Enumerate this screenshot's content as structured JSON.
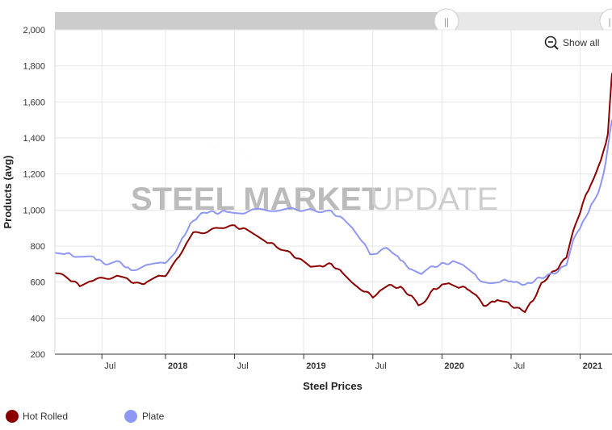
{
  "navigator": {
    "handle_left_glyph": "||",
    "handle_right_glyph": "|"
  },
  "zoom": {
    "label": "Show all",
    "icon": "zoom-out-icon"
  },
  "watermark": {
    "part_bold": "STEEL MARKET",
    "part_light": "UPDATE"
  },
  "chart_data": {
    "type": "line",
    "title": "",
    "xlabel": "Steel Prices",
    "ylabel": "Products (avg)",
    "ylim": [
      200,
      2000
    ],
    "yticks": [
      "200",
      "400",
      "600",
      "800",
      "1,000",
      "1,200",
      "1,400",
      "1,600",
      "1,800",
      "2,000"
    ],
    "xticks": [
      {
        "label": "Jul",
        "date": "2017.54",
        "bold": false
      },
      {
        "label": "2018",
        "date": "2018.0",
        "bold": true
      },
      {
        "label": "Jul",
        "date": "2018.5",
        "bold": false
      },
      {
        "label": "2019",
        "date": "2019.0",
        "bold": true
      },
      {
        "label": "Jul",
        "date": "2019.5",
        "bold": false
      },
      {
        "label": "2020",
        "date": "2020.0",
        "bold": true
      },
      {
        "label": "Jul",
        "date": "2020.5",
        "bold": false
      },
      {
        "label": "2021",
        "date": "2021.0",
        "bold": true
      }
    ],
    "xrange": [
      2017.2,
      2021.23
    ],
    "grid": true,
    "legend_position": "bottom-left",
    "series": [
      {
        "name": "Hot Rolled",
        "color": "#8b0000",
        "points": [
          [
            2017.2,
            655
          ],
          [
            2017.3,
            620
          ],
          [
            2017.38,
            580
          ],
          [
            2017.45,
            610
          ],
          [
            2017.55,
            620
          ],
          [
            2017.65,
            630
          ],
          [
            2017.72,
            615
          ],
          [
            2017.8,
            590
          ],
          [
            2017.88,
            600
          ],
          [
            2017.95,
            630
          ],
          [
            2018.0,
            640
          ],
          [
            2018.05,
            690
          ],
          [
            2018.1,
            740
          ],
          [
            2018.15,
            820
          ],
          [
            2018.2,
            870
          ],
          [
            2018.3,
            880
          ],
          [
            2018.4,
            905
          ],
          [
            2018.5,
            910
          ],
          [
            2018.58,
            890
          ],
          [
            2018.65,
            860
          ],
          [
            2018.72,
            830
          ],
          [
            2018.8,
            800
          ],
          [
            2018.9,
            760
          ],
          [
            2018.98,
            720
          ],
          [
            2019.05,
            680
          ],
          [
            2019.12,
            690
          ],
          [
            2019.2,
            700
          ],
          [
            2019.28,
            650
          ],
          [
            2019.35,
            600
          ],
          [
            2019.42,
            560
          ],
          [
            2019.5,
            520
          ],
          [
            2019.55,
            550
          ],
          [
            2019.62,
            580
          ],
          [
            2019.7,
            570
          ],
          [
            2019.78,
            520
          ],
          [
            2019.83,
            470
          ],
          [
            2019.88,
            500
          ],
          [
            2019.94,
            560
          ],
          [
            2020.0,
            580
          ],
          [
            2020.05,
            600
          ],
          [
            2020.12,
            575
          ],
          [
            2020.2,
            560
          ],
          [
            2020.25,
            520
          ],
          [
            2020.3,
            470
          ],
          [
            2020.38,
            490
          ],
          [
            2020.44,
            500
          ],
          [
            2020.5,
            470
          ],
          [
            2020.56,
            450
          ],
          [
            2020.6,
            440
          ],
          [
            2020.66,
            500
          ],
          [
            2020.72,
            590
          ],
          [
            2020.78,
            640
          ],
          [
            2020.84,
            680
          ],
          [
            2020.9,
            740
          ],
          [
            2020.95,
            880
          ],
          [
            2021.0,
            990
          ],
          [
            2021.04,
            1080
          ],
          [
            2021.08,
            1150
          ],
          [
            2021.13,
            1240
          ],
          [
            2021.17,
            1330
          ],
          [
            2021.2,
            1420
          ],
          [
            2021.23,
            1760
          ]
        ]
      },
      {
        "name": "Plate",
        "color": "#8e97f2",
        "points": [
          [
            2017.2,
            770
          ],
          [
            2017.27,
            760
          ],
          [
            2017.35,
            745
          ],
          [
            2017.44,
            750
          ],
          [
            2017.5,
            725
          ],
          [
            2017.58,
            700
          ],
          [
            2017.65,
            715
          ],
          [
            2017.73,
            680
          ],
          [
            2017.79,
            660
          ],
          [
            2017.86,
            690
          ],
          [
            2017.95,
            700
          ],
          [
            2018.0,
            710
          ],
          [
            2018.07,
            770
          ],
          [
            2018.12,
            840
          ],
          [
            2018.18,
            920
          ],
          [
            2018.24,
            970
          ],
          [
            2018.3,
            990
          ],
          [
            2018.38,
            985
          ],
          [
            2018.46,
            995
          ],
          [
            2018.55,
            985
          ],
          [
            2018.65,
            1000
          ],
          [
            2018.78,
            1000
          ],
          [
            2018.9,
            1005
          ],
          [
            2019.0,
            1000
          ],
          [
            2019.1,
            995
          ],
          [
            2019.2,
            990
          ],
          [
            2019.28,
            950
          ],
          [
            2019.35,
            900
          ],
          [
            2019.42,
            830
          ],
          [
            2019.48,
            760
          ],
          [
            2019.53,
            750
          ],
          [
            2019.58,
            790
          ],
          [
            2019.64,
            770
          ],
          [
            2019.7,
            720
          ],
          [
            2019.78,
            670
          ],
          [
            2019.85,
            640
          ],
          [
            2019.92,
            680
          ],
          [
            2020.0,
            700
          ],
          [
            2020.08,
            710
          ],
          [
            2020.15,
            690
          ],
          [
            2020.22,
            650
          ],
          [
            2020.28,
            610
          ],
          [
            2020.35,
            600
          ],
          [
            2020.42,
            605
          ],
          [
            2020.5,
            610
          ],
          [
            2020.56,
            590
          ],
          [
            2020.62,
            590
          ],
          [
            2020.7,
            620
          ],
          [
            2020.78,
            640
          ],
          [
            2020.84,
            660
          ],
          [
            2020.9,
            700
          ],
          [
            2020.95,
            830
          ],
          [
            2021.0,
            900
          ],
          [
            2021.04,
            960
          ],
          [
            2021.08,
            1030
          ],
          [
            2021.13,
            1100
          ],
          [
            2021.17,
            1200
          ],
          [
            2021.2,
            1350
          ],
          [
            2021.23,
            1500
          ]
        ]
      }
    ]
  }
}
